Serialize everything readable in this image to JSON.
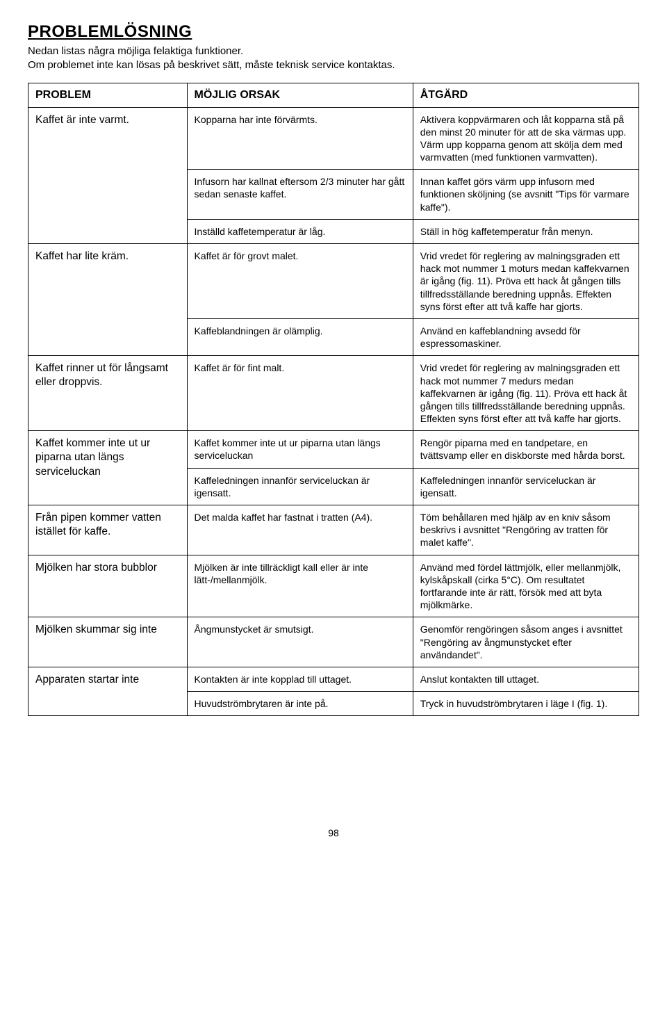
{
  "heading": "PROBLEMLÖSNING",
  "intro_line1": "Nedan listas några möjliga felaktiga funktioner.",
  "intro_line2": "Om problemet inte kan lösas på beskrivet sätt, måste teknisk service kontaktas.",
  "headers": {
    "c1": "PROBLEM",
    "c2": "MÖJLIG ORSAK",
    "c3": "ÅTGÄRD"
  },
  "r1": {
    "problem": "Kaffet är inte varmt.",
    "cause1": "Kopparna har inte förvärmts.",
    "fix1": "Aktivera koppvärmaren och låt kopparna stå på den minst 20 minuter för att de ska värmas upp. Värm upp kopparna genom att skölja dem med varmvatten (med funktionen varmvatten).",
    "cause2": "Infusorn har kallnat eftersom 2/3 minuter har gått sedan senaste kaffet.",
    "fix2": "Innan kaffet görs värm upp infusorn med funktionen sköljning (se avsnitt \"Tips för varmare kaffe\").",
    "cause3": "Inställd kaffetemperatur är låg.",
    "fix3": "Ställ in hög kaffetemperatur från menyn."
  },
  "r2": {
    "problem": "Kaffet har lite kräm.",
    "cause1": "Kaffet är för grovt malet.",
    "fix1": "Vrid vredet för reglering av malningsgraden ett hack mot nummer 1 moturs medan kaffekvarnen är igång (fig. 11). Pröva ett hack åt gången tills tillfredsställande beredning uppnås. Effekten syns först efter att två kaffe har gjorts.",
    "cause2": "Kaffeblandningen är olämplig.",
    "fix2": "Använd en kaffeblandning avsedd för espressomaskiner."
  },
  "r3": {
    "problem": "Kaffet rinner ut för långsamt eller droppvis.",
    "cause": "Kaffet är för fint malt.",
    "fix": "Vrid vredet för reglering av malningsgraden ett hack mot nummer 7 medurs medan kaffekvarnen är igång (fig. 11). Pröva ett hack åt gången tills tillfredsställande beredning uppnås. Effekten syns först efter att två kaffe har gjorts."
  },
  "r4": {
    "problem": "Kaffet kommer inte ut ur piparna utan längs serviceluckan",
    "cause1": "Kaffet kommer inte ut ur piparna utan längs serviceluckan",
    "fix1": "Rengör piparna med en tandpetare, en tvättsvamp eller en diskborste med hårda borst.",
    "cause2": "Kaffeledningen innanför serviceluckan är igensatt.",
    "fix2": "Kaffeledningen innanför serviceluckan är igensatt."
  },
  "r5": {
    "problem": "Från pipen kommer vatten istället för kaffe.",
    "cause": "Det malda kaffet har fastnat i tratten (A4).",
    "fix": "Töm behållaren med hjälp av en kniv såsom beskrivs i avsnittet \"Rengöring av tratten för malet kaffe\"."
  },
  "r6": {
    "problem": "Mjölken har stora bubblor",
    "cause": "Mjölken är inte tillräckligt kall eller är inte lätt-/mellanmjölk.",
    "fix": "Använd med fördel lättmjölk, eller mellanmjölk, kylskåpskall (cirka 5°C). Om resultatet fortfarande inte är rätt, försök med att byta mjölkmärke."
  },
  "r7": {
    "problem": "Mjölken skummar sig inte",
    "cause": "Ångmunstycket är smutsigt.",
    "fix": "Genomför rengöringen såsom anges i avsnittet \"Rengöring av ångmunstycket efter användandet\"."
  },
  "r8": {
    "problem": "Apparaten startar inte",
    "cause1": "Kontakten är inte kopplad till uttaget.",
    "fix1": "Anslut kontakten till uttaget.",
    "cause2": "Huvudströmbrytaren är inte på.",
    "fix2": "Tryck in huvudströmbrytaren i läge I (fig. 1)."
  },
  "page_number": "98"
}
